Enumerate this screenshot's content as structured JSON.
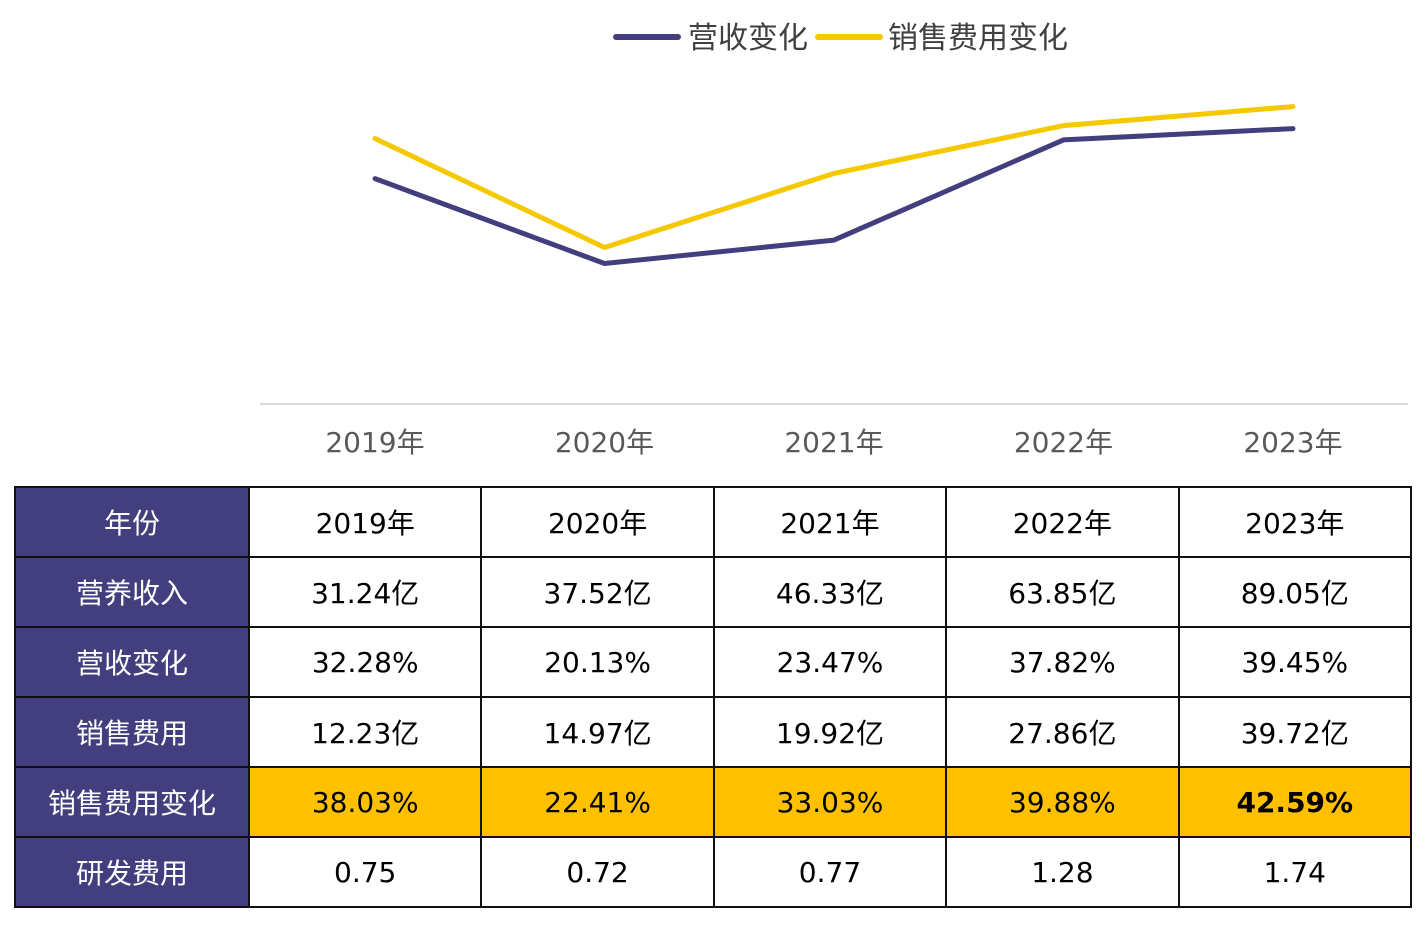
{
  "chart_data": {
    "type": "line",
    "categories": [
      "2019年",
      "2020年",
      "2021年",
      "2022年",
      "2023年"
    ],
    "series": [
      {
        "name": "营收变化",
        "values": [
          32.28,
          20.13,
          23.47,
          37.82,
          39.45
        ],
        "color": "#433f7f"
      },
      {
        "name": "销售费用变化",
        "values": [
          38.03,
          22.41,
          33.03,
          39.88,
          42.59
        ],
        "color": "#f5c800"
      }
    ],
    "ylim": [
      0,
      55
    ],
    "legend_position": "top-center",
    "grid": false
  },
  "table": {
    "rows": [
      {
        "label": "年份",
        "values": [
          "2019年",
          "2020年",
          "2021年",
          "2022年",
          "2023年"
        ]
      },
      {
        "label": "营养收入",
        "values": [
          "31.24亿",
          "37.52亿",
          "46.33亿",
          "63.85亿",
          "89.05亿"
        ]
      },
      {
        "label": "营收变化",
        "values": [
          "32.28%",
          "20.13%",
          "23.47%",
          "37.82%",
          "39.45%"
        ]
      },
      {
        "label": "销售费用",
        "values": [
          "12.23亿",
          "14.97亿",
          "19.92亿",
          "27.86亿",
          "39.72亿"
        ]
      },
      {
        "label": "销售费用变化",
        "values": [
          "38.03%",
          "22.41%",
          "33.03%",
          "39.88%",
          "42.59%"
        ]
      },
      {
        "label": "研发费用",
        "values": [
          "0.75",
          "0.72",
          "0.77",
          "1.28",
          "1.74"
        ]
      }
    ],
    "highlight_color": "#ffc000",
    "header_color": "#433f7f"
  }
}
